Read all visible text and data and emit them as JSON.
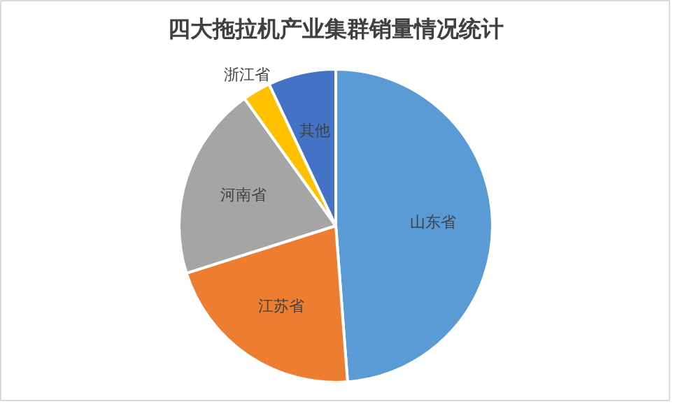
{
  "chart_data": {
    "type": "pie",
    "title": "四大拖拉机产业集群销量情况统计",
    "categories": [
      "山东省",
      "江苏省",
      "河南省",
      "浙江省",
      "其他"
    ],
    "values": [
      48.8,
      21.3,
      20.0,
      2.9,
      7.0
    ],
    "colors": [
      "#5b9bd5",
      "#ed7d31",
      "#a5a5a5",
      "#ffc000",
      "#4472c4"
    ],
    "legend": false
  }
}
